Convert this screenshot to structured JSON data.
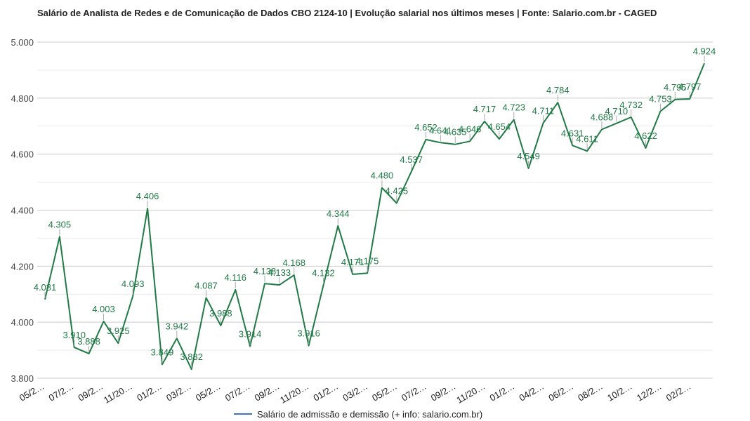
{
  "chart_data": {
    "type": "line",
    "title": "Salário de Analista de Redes e de Comunicação de Dados CBO 2124-10 | Evolução salarial nos últimos meses | Fonte: Salario.com.br - CAGED",
    "xlabel": "",
    "ylabel": "",
    "ylim": [
      3800,
      5000
    ],
    "yticks": [
      "3.800",
      "4.000",
      "4.200",
      "4.400",
      "4.600",
      "4.800",
      "5.000"
    ],
    "grid": true,
    "legend_position": "bottom",
    "xtick_labels": [
      "05/2…",
      "07/2…",
      "09/2…",
      "11/20…",
      "01/2…",
      "03/2…",
      "05/2…",
      "07/2…",
      "09/2…",
      "11/20…",
      "01/2…",
      "03/2…",
      "05/2…",
      "07/2…",
      "09/2…",
      "11/20…",
      "01/2…",
      "04/2…",
      "06/2…",
      "08/2…",
      "10/2…",
      "12/2…",
      "02/2…"
    ],
    "line_color": "#1f7a45",
    "legend_color": "#4472c4",
    "series": [
      {
        "name": "Salário de admissão e demissão (+ info: salario.com.br)",
        "values": [
          4081,
          4305,
          3910,
          3888,
          4003,
          3925,
          4093,
          4406,
          3849,
          3942,
          3832,
          4087,
          3988,
          4116,
          3914,
          4138,
          4133,
          4168,
          3916,
          4132,
          4344,
          4171,
          4175,
          4480,
          4425,
          4537,
          4652,
          4641,
          4635,
          4646,
          4717,
          4654,
          4723,
          4549,
          4711,
          4784,
          4631,
          4611,
          4688,
          4710,
          4732,
          4622,
          4753,
          4795,
          4797,
          4924
        ],
        "labels": [
          "4.081",
          "4.305",
          "3.910",
          "3.888",
          "4.003",
          "3.925",
          "4.093",
          "4.406",
          "3.849",
          "3.942",
          "3.832",
          "4.087",
          "3.988",
          "4.116",
          "3.914",
          "4.138",
          "4.133",
          "4.168",
          "3.916",
          "4.132",
          "4.344",
          "4.171",
          "4.175",
          "4.480",
          "4.425",
          "4.537",
          "4.652",
          "4.641",
          "4.635",
          "4.646",
          "4.717",
          "4.654",
          "4.723",
          "4.549",
          "4.711",
          "4.784",
          "4.631",
          "4.611",
          "4.688",
          "4.710",
          "4.732",
          "4.622",
          "4.753",
          "4.795",
          "4.797",
          "4.924"
        ]
      }
    ]
  }
}
